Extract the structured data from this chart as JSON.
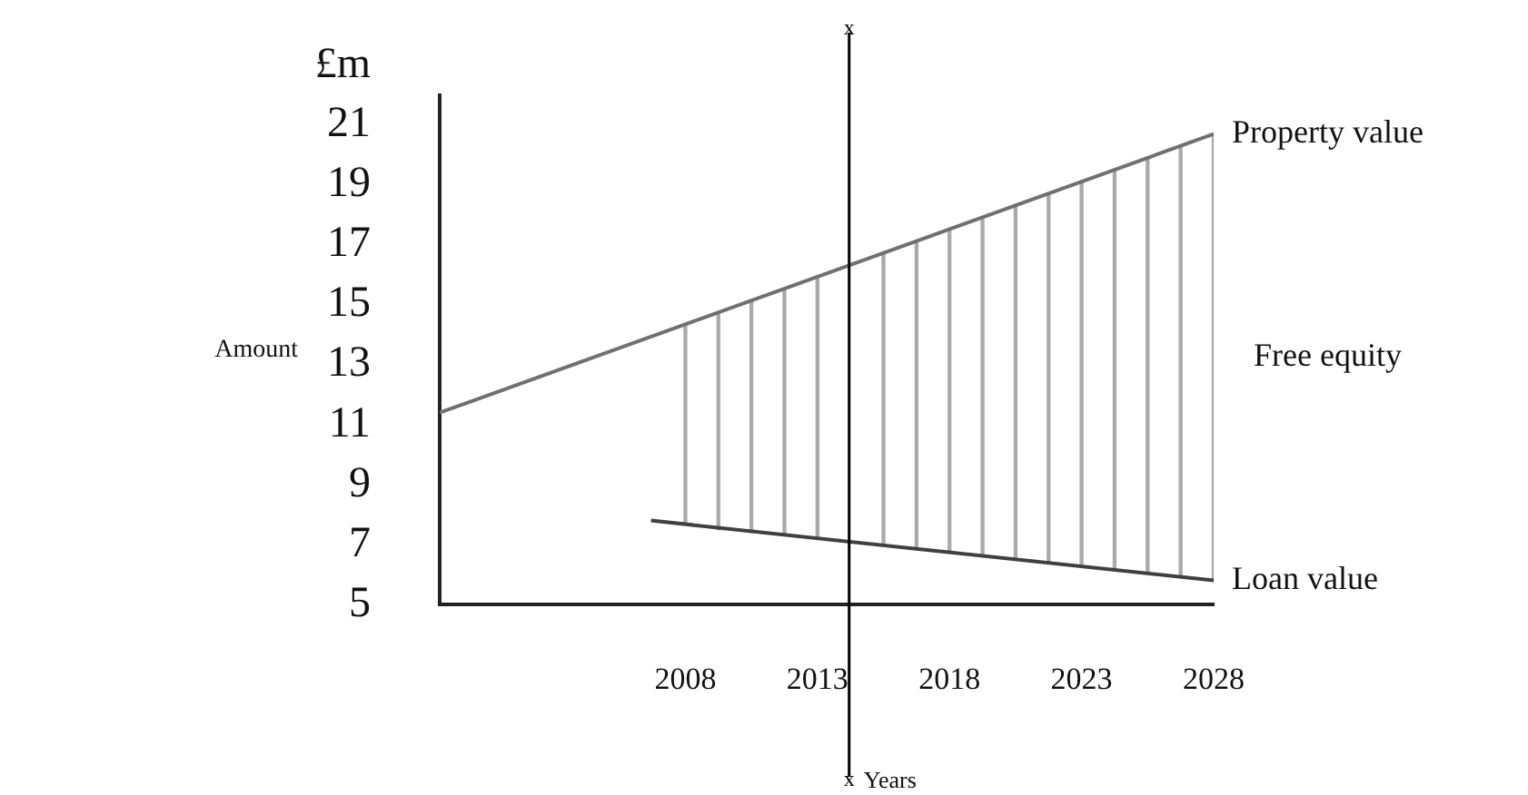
{
  "chart_data": {
    "type": "line",
    "ylabel": "Amount",
    "xlabel": "Years",
    "annotations": [
      "£m"
    ],
    "xlim": [
      1998.7,
      2028
    ],
    "xticks": [
      2008,
      2013,
      2018,
      2023,
      2028
    ],
    "ylim": [
      5,
      22
    ],
    "yticks": [
      5,
      7,
      9,
      11,
      13,
      15,
      17,
      19,
      21
    ],
    "grid": false,
    "legend": false,
    "marker": "none",
    "line_style": "solid",
    "ref_lines": [
      {
        "axis": "x",
        "value": 2014.2,
        "label": "x",
        "color": "#000000"
      }
    ],
    "series": [
      {
        "name": "Property value",
        "color": "#707070",
        "x": [
          1998.7,
          2028
        ],
        "values": [
          11.4,
          20.7
        ]
      },
      {
        "name": "Loan value",
        "color": "#404040",
        "x": [
          2006.7,
          2028
        ],
        "values": [
          7.8,
          5.8
        ]
      },
      {
        "name": "Free equity",
        "type": "bar",
        "color": "#aaaaaa",
        "x": [
          2008,
          2009.25,
          2010.5,
          2011.75,
          2013,
          2014.25,
          2015.5,
          2016.75,
          2018,
          2019.25,
          2020.5,
          2021.75,
          2023,
          2024.25,
          2025.5,
          2026.75,
          2028
        ],
        "base": [
          7.7,
          7.5,
          7.4,
          7.3,
          7.2,
          null,
          7.0,
          6.9,
          6.8,
          6.6,
          6.5,
          6.4,
          6.3,
          6.2,
          6.1,
          5.9,
          5.8
        ],
        "values": [
          6.6,
          7.2,
          7.7,
          8.2,
          8.7,
          null,
          9.7,
          10.2,
          10.7,
          11.3,
          11.8,
          12.3,
          12.8,
          13.3,
          13.8,
          14.4,
          14.9
        ]
      }
    ]
  }
}
